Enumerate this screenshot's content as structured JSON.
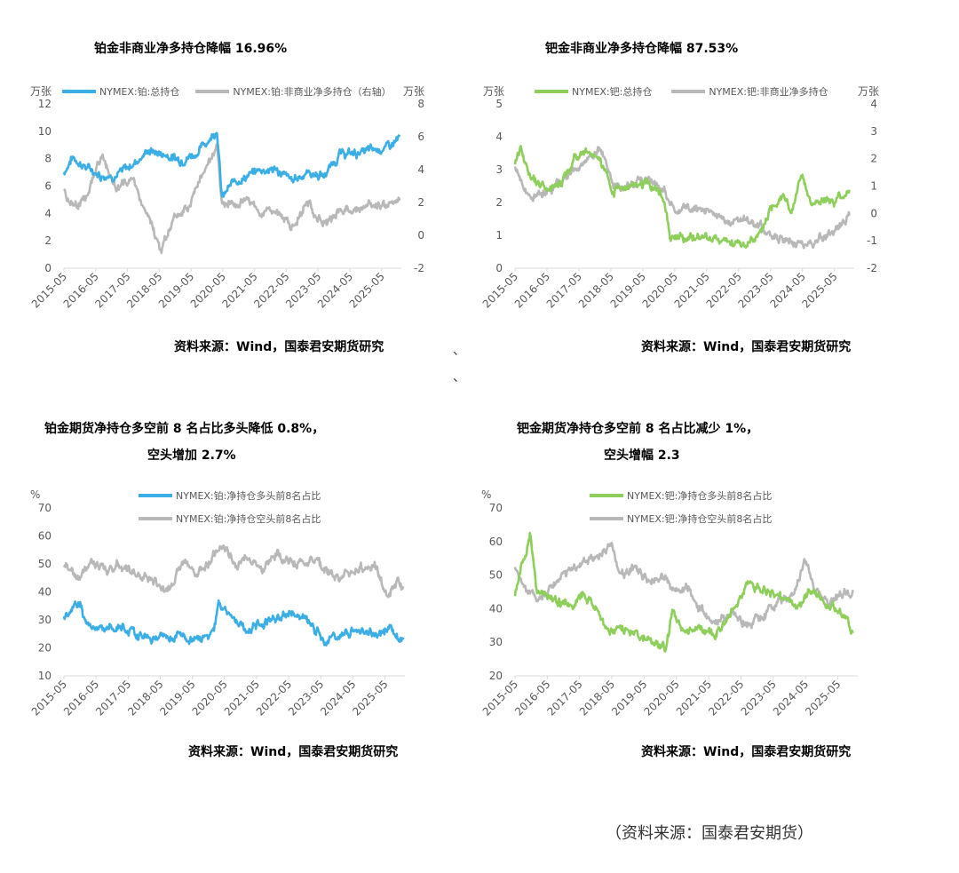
{
  "charts": [
    {
      "title_lines": [
        "铂金非商业净多持仓降幅 16.96%"
      ],
      "unit_left": "万张",
      "unit_right": "万张",
      "source": "资料来源：Wind，国泰君安期货研究",
      "legend": [
        "NYMEX:铂:总持仓",
        "NYMEX:铂:非商业净多持仓（右轴）"
      ]
    },
    {
      "title_lines": [
        "钯金非商业净多持仓降幅 87.53%"
      ],
      "unit_left": "万张",
      "unit_right": "万张",
      "source": "资料来源：Wind，国泰君安期货研究",
      "legend": [
        "NYMEX:钯:总持仓",
        "NYMEX:钯:非商业净多持仓"
      ]
    },
    {
      "title_lines": [
        "铂金期货净持仓多空前 8 名占比多头降低 0.8%，",
        "空头增加 2.7%"
      ],
      "unit_left": "%",
      "unit_right": "",
      "source": "资料来源：Wind，国泰君安期货研究",
      "legend": [
        "NYMEX:铂:净持仓多头前8名占比",
        "NYMEX:铂:净持仓空头前8名占比"
      ]
    },
    {
      "title_lines": [
        "钯金期货净持仓多空前 8 名占比减少 1%，",
        "空头增幅 2.3"
      ],
      "unit_left": "%",
      "unit_right": "",
      "source": "资料来源：Wind，国泰君安期货研究",
      "legend": [
        "NYMEX:钯:净持仓多头前8名占比",
        "NYMEX:钯:净持仓空头前8名占比"
      ]
    }
  ],
  "stray_marks": [
    "、",
    "、"
  ],
  "footer": "（资料来源：国泰君安期货）",
  "chart_data": [
    {
      "type": "line",
      "x": [
        "2015-05",
        "2016-05",
        "2017-05",
        "2018-05",
        "2019-05",
        "2020-05",
        "2021-05",
        "2022-05",
        "2023-05",
        "2024-05",
        "2025-05"
      ],
      "left_axis": {
        "ticks": [
          0,
          2,
          4,
          6,
          8,
          10,
          12
        ],
        "ylim": [
          0,
          12
        ]
      },
      "right_axis": {
        "ticks": [
          -2,
          0,
          2,
          4,
          6,
          8
        ],
        "ylim": [
          -2,
          8
        ]
      },
      "series": [
        {
          "name": "NYMEX:铂:总持仓",
          "axis": "left",
          "color": "#3AAEE5",
          "keypoints": [
            [
              2015.33,
              7.0
            ],
            [
              2015.6,
              8.1
            ],
            [
              2016.0,
              7.4
            ],
            [
              2016.5,
              6.8
            ],
            [
              2017.0,
              6.8
            ],
            [
              2017.5,
              7.6
            ],
            [
              2018.0,
              8.6
            ],
            [
              2018.5,
              8.3
            ],
            [
              2019.0,
              7.9
            ],
            [
              2019.5,
              8.4
            ],
            [
              2020.0,
              9.7
            ],
            [
              2020.15,
              10.2
            ],
            [
              2020.3,
              5.1
            ],
            [
              2020.7,
              6.4
            ],
            [
              2021.0,
              6.6
            ],
            [
              2021.5,
              7.2
            ],
            [
              2022.0,
              7.2
            ],
            [
              2022.5,
              6.4
            ],
            [
              2023.0,
              7.0
            ],
            [
              2023.5,
              6.7
            ],
            [
              2024.0,
              8.3
            ],
            [
              2024.5,
              8.4
            ],
            [
              2025.0,
              8.6
            ],
            [
              2025.5,
              8.8
            ],
            [
              2025.9,
              9.5
            ]
          ]
        },
        {
          "name": "NYMEX:铂:非商业净多持仓（右轴）",
          "axis": "right",
          "color": "#B8B8B8",
          "keypoints": [
            [
              2015.33,
              2.8
            ],
            [
              2015.6,
              1.8
            ],
            [
              2016.0,
              2.2
            ],
            [
              2016.5,
              4.8
            ],
            [
              2017.0,
              2.8
            ],
            [
              2017.5,
              3.4
            ],
            [
              2018.0,
              1.0
            ],
            [
              2018.4,
              -1.0
            ],
            [
              2018.8,
              1.2
            ],
            [
              2019.2,
              1.5
            ],
            [
              2019.6,
              3.5
            ],
            [
              2020.0,
              4.5
            ],
            [
              2020.15,
              6.0
            ],
            [
              2020.3,
              2.0
            ],
            [
              2020.8,
              1.8
            ],
            [
              2021.0,
              2.5
            ],
            [
              2021.5,
              1.2
            ],
            [
              2022.0,
              1.6
            ],
            [
              2022.5,
              0.5
            ],
            [
              2023.0,
              2.0
            ],
            [
              2023.5,
              0.6
            ],
            [
              2024.0,
              1.6
            ],
            [
              2024.5,
              1.4
            ],
            [
              2025.0,
              2.0
            ],
            [
              2025.5,
              1.8
            ],
            [
              2025.9,
              2.2
            ]
          ]
        }
      ]
    },
    {
      "type": "line",
      "x": [
        "2015-05",
        "2016-05",
        "2017-05",
        "2018-05",
        "2019-05",
        "2020-05",
        "2021-05",
        "2022-05",
        "2023-05",
        "2024-05",
        "2025-05"
      ],
      "left_axis": {
        "ticks": [
          0,
          1,
          2,
          3,
          4,
          5
        ],
        "ylim": [
          0,
          5
        ]
      },
      "right_axis": {
        "ticks": [
          -2,
          -1,
          0,
          1,
          2,
          3,
          4
        ],
        "ylim": [
          -2,
          4
        ]
      },
      "series": [
        {
          "name": "NYMEX:钯:总持仓",
          "axis": "left",
          "color": "#8DCF5A",
          "keypoints": [
            [
              2015.33,
              3.2
            ],
            [
              2015.5,
              3.6
            ],
            [
              2015.8,
              2.7
            ],
            [
              2016.3,
              2.5
            ],
            [
              2016.8,
              2.6
            ],
            [
              2017.2,
              3.4
            ],
            [
              2017.6,
              3.5
            ],
            [
              2018.0,
              3.3
            ],
            [
              2018.4,
              2.3
            ],
            [
              2018.8,
              2.4
            ],
            [
              2019.2,
              2.6
            ],
            [
              2019.7,
              2.5
            ],
            [
              2020.0,
              2.1
            ],
            [
              2020.2,
              1.0
            ],
            [
              2020.6,
              0.9
            ],
            [
              2021.0,
              1.0
            ],
            [
              2021.5,
              0.9
            ],
            [
              2022.0,
              0.8
            ],
            [
              2022.5,
              0.7
            ],
            [
              2023.0,
              1.0
            ],
            [
              2023.3,
              1.8
            ],
            [
              2023.7,
              2.3
            ],
            [
              2024.0,
              1.7
            ],
            [
              2024.3,
              2.8
            ],
            [
              2024.6,
              1.9
            ],
            [
              2025.0,
              2.1
            ],
            [
              2025.4,
              2.0
            ],
            [
              2025.8,
              2.3
            ]
          ]
        },
        {
          "name": "NYMEX:钯:非商业净多持仓",
          "axis": "right",
          "color": "#B8B8B8",
          "keypoints": [
            [
              2015.33,
              1.8
            ],
            [
              2015.6,
              0.8
            ],
            [
              2016.0,
              0.6
            ],
            [
              2016.5,
              0.9
            ],
            [
              2017.0,
              1.5
            ],
            [
              2017.5,
              1.8
            ],
            [
              2018.0,
              2.4
            ],
            [
              2018.4,
              1.1
            ],
            [
              2018.8,
              0.9
            ],
            [
              2019.2,
              1.2
            ],
            [
              2019.7,
              1.1
            ],
            [
              2020.0,
              0.8
            ],
            [
              2020.3,
              0.1
            ],
            [
              2020.6,
              0.2
            ],
            [
              2021.0,
              0.2
            ],
            [
              2021.5,
              0.0
            ],
            [
              2022.0,
              -0.3
            ],
            [
              2022.5,
              -0.2
            ],
            [
              2023.0,
              -0.5
            ],
            [
              2023.5,
              -0.9
            ],
            [
              2024.0,
              -1.0
            ],
            [
              2024.5,
              -1.1
            ],
            [
              2025.0,
              -0.9
            ],
            [
              2025.4,
              -0.6
            ],
            [
              2025.8,
              -0.1
            ]
          ]
        }
      ]
    },
    {
      "type": "line",
      "x": [
        "2015-05",
        "2016-05",
        "2017-05",
        "2018-05",
        "2019-05",
        "2020-05",
        "2021-05",
        "2022-05",
        "2023-05",
        "2024-05",
        "2025-05"
      ],
      "left_axis": {
        "ticks": [
          10,
          20,
          30,
          40,
          50,
          60,
          70
        ],
        "ylim": [
          10,
          70
        ]
      },
      "series": [
        {
          "name": "NYMEX:铂:净持仓多头前8名占比",
          "axis": "left",
          "color": "#3AAEE5",
          "keypoints": [
            [
              2015.33,
              31
            ],
            [
              2015.8,
              37
            ],
            [
              2016.0,
              29
            ],
            [
              2016.5,
              28
            ],
            [
              2017.0,
              27
            ],
            [
              2017.5,
              26
            ],
            [
              2018.0,
              23
            ],
            [
              2018.5,
              25
            ],
            [
              2019.0,
              24
            ],
            [
              2019.5,
              23
            ],
            [
              2020.0,
              26
            ],
            [
              2020.15,
              36
            ],
            [
              2020.5,
              31
            ],
            [
              2021.0,
              27
            ],
            [
              2021.5,
              29
            ],
            [
              2022.0,
              31
            ],
            [
              2022.5,
              33
            ],
            [
              2023.0,
              29
            ],
            [
              2023.5,
              22
            ],
            [
              2024.0,
              25
            ],
            [
              2024.5,
              27
            ],
            [
              2025.0,
              25
            ],
            [
              2025.5,
              26
            ],
            [
              2025.9,
              23
            ]
          ]
        },
        {
          "name": "NYMEX:铂:净持仓空头前8名占比",
          "axis": "left",
          "color": "#B8B8B8",
          "keypoints": [
            [
              2015.33,
              49
            ],
            [
              2015.8,
              45
            ],
            [
              2016.2,
              51
            ],
            [
              2016.6,
              47
            ],
            [
              2017.0,
              49
            ],
            [
              2017.5,
              47
            ],
            [
              2018.0,
              45
            ],
            [
              2018.5,
              40
            ],
            [
              2019.0,
              50
            ],
            [
              2019.5,
              47
            ],
            [
              2020.0,
              53
            ],
            [
              2020.3,
              56
            ],
            [
              2020.7,
              50
            ],
            [
              2021.0,
              53
            ],
            [
              2021.5,
              48
            ],
            [
              2022.0,
              54
            ],
            [
              2022.5,
              50
            ],
            [
              2023.0,
              52
            ],
            [
              2023.5,
              48
            ],
            [
              2024.0,
              45
            ],
            [
              2024.5,
              48
            ],
            [
              2025.0,
              50
            ],
            [
              2025.4,
              38
            ],
            [
              2025.7,
              43
            ],
            [
              2025.9,
              41
            ]
          ]
        }
      ]
    },
    {
      "type": "line",
      "x": [
        "2015-05",
        "2016-05",
        "2017-05",
        "2018-05",
        "2019-05",
        "2020-05",
        "2021-05",
        "2022-05",
        "2023-05",
        "2024-05",
        "2025-05"
      ],
      "left_axis": {
        "ticks": [
          20,
          30,
          40,
          50,
          60,
          70
        ],
        "ylim": [
          20,
          70
        ]
      },
      "series": [
        {
          "name": "NYMEX:钯:净持仓多头前8名占比",
          "axis": "left",
          "color": "#8DCF5A",
          "keypoints": [
            [
              2015.33,
              44
            ],
            [
              2015.6,
              55
            ],
            [
              2015.8,
              63
            ],
            [
              2016.0,
              46
            ],
            [
              2016.5,
              43
            ],
            [
              2017.0,
              41
            ],
            [
              2017.5,
              44
            ],
            [
              2017.9,
              40
            ],
            [
              2018.2,
              33
            ],
            [
              2018.5,
              34
            ],
            [
              2019.0,
              33
            ],
            [
              2019.5,
              30
            ],
            [
              2020.0,
              28
            ],
            [
              2020.2,
              40
            ],
            [
              2020.5,
              33
            ],
            [
              2021.0,
              34
            ],
            [
              2021.5,
              31
            ],
            [
              2022.0,
              38
            ],
            [
              2022.5,
              47
            ],
            [
              2023.0,
              46
            ],
            [
              2023.5,
              44
            ],
            [
              2024.0,
              41
            ],
            [
              2024.5,
              45
            ],
            [
              2025.0,
              42
            ],
            [
              2025.5,
              38
            ],
            [
              2025.8,
              33
            ]
          ]
        },
        {
          "name": "NYMEX:钯:净持仓空头前8名占比",
          "axis": "left",
          "color": "#B8B8B8",
          "keypoints": [
            [
              2015.33,
              53
            ],
            [
              2015.6,
              47
            ],
            [
              2016.0,
              43
            ],
            [
              2016.5,
              47
            ],
            [
              2017.0,
              51
            ],
            [
              2017.5,
              54
            ],
            [
              2018.0,
              56
            ],
            [
              2018.3,
              60
            ],
            [
              2018.6,
              50
            ],
            [
              2019.0,
              52
            ],
            [
              2019.5,
              49
            ],
            [
              2020.0,
              50
            ],
            [
              2020.3,
              44
            ],
            [
              2020.7,
              47
            ],
            [
              2021.0,
              40
            ],
            [
              2021.5,
              35
            ],
            [
              2022.0,
              38
            ],
            [
              2022.5,
              35
            ],
            [
              2023.0,
              38
            ],
            [
              2023.5,
              42
            ],
            [
              2024.0,
              44
            ],
            [
              2024.3,
              55
            ],
            [
              2024.6,
              46
            ],
            [
              2025.0,
              42
            ],
            [
              2025.5,
              44
            ],
            [
              2025.8,
              45
            ]
          ]
        }
      ]
    }
  ]
}
